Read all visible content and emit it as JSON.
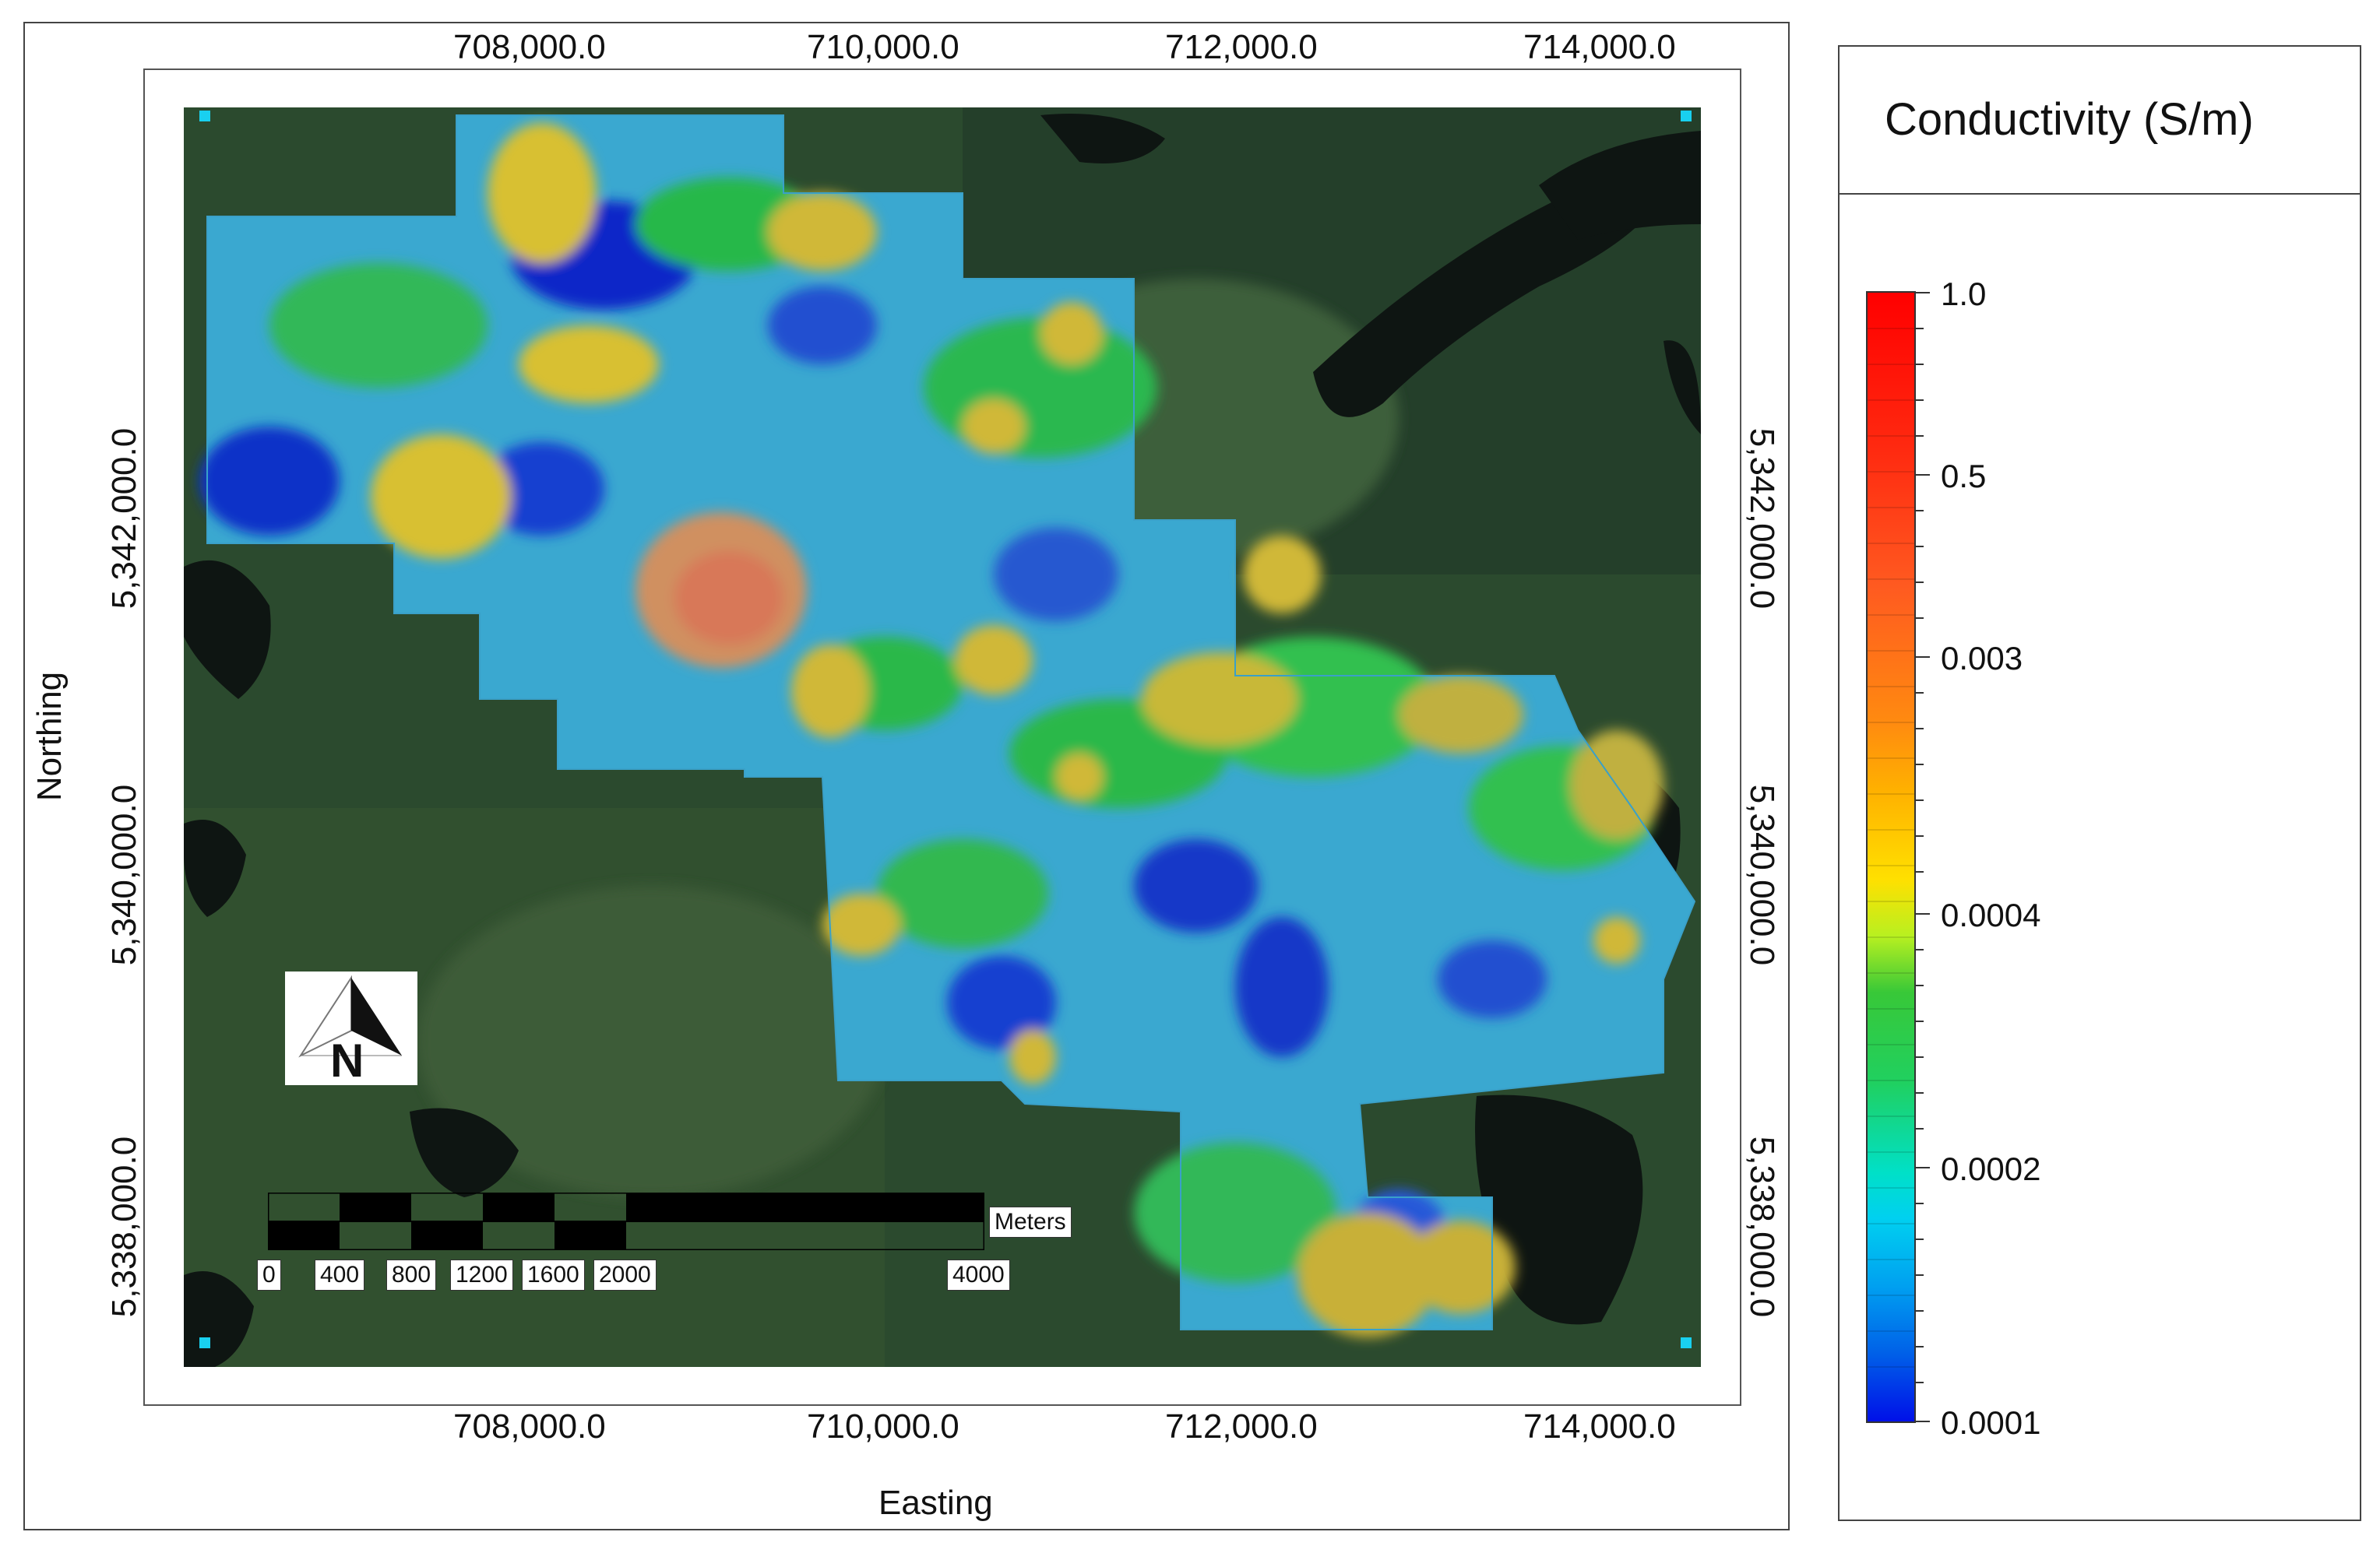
{
  "map": {
    "x_axis_title": "Easting",
    "y_axis_title": "Northing",
    "easting_ticks": [
      "708,000.0",
      "710,000.0",
      "712,000.0",
      "714,000.0"
    ],
    "northing_ticks": [
      "5,342,000.0",
      "5,340,000.0",
      "5,338,000.0"
    ],
    "north_arrow_letter": "N",
    "scale_bar": {
      "unit_label": "Meters",
      "labels": [
        "0",
        "400",
        "800",
        "1200",
        "1600",
        "2000",
        "4000"
      ]
    },
    "icons": {
      "north_arrow": "north-arrow-icon"
    }
  },
  "legend": {
    "title": "Conductivity (S/m)",
    "labels": [
      "1.0",
      "0.5",
      "0.003",
      "0.0004",
      "0.0002",
      "0.0001"
    ],
    "colors": {
      "max": "#ff0000",
      "high": "#ff7a10",
      "mid_high": "#ffe000",
      "mid": "#28c828",
      "mid_low": "#00e0d8",
      "min": "#0010e8"
    }
  }
}
